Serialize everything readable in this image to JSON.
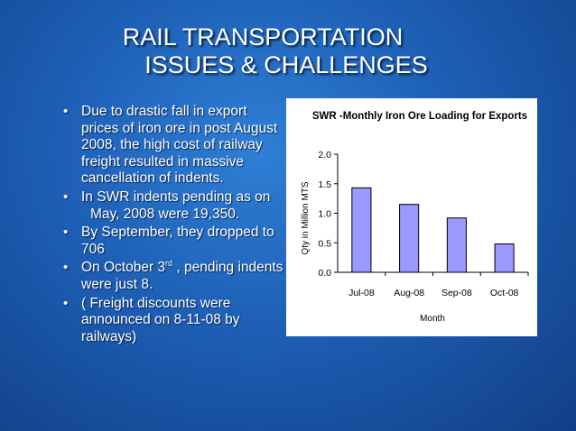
{
  "slide": {
    "title_line1": "RAIL TRANSPORTATION",
    "title_line2": "ISSUES & CHALLENGES"
  },
  "bullets": [
    {
      "text": "Due to drastic fall in export prices of iron ore in post August 2008, the high cost of railway freight resulted in massive cancellation of indents."
    },
    {
      "text": "In SWR indents pending as on",
      "text2": "May, 2008 were 19,350."
    },
    {
      "text": "By September, they dropped to 706"
    },
    {
      "text_before": "On October 3",
      "ordinal": "rd",
      "text_after": " , pending indents were just 8."
    },
    {
      "text": "( Freight discounts were announced on 8-11-08 by railways)"
    }
  ],
  "bullet_symbol": "•",
  "colors": {
    "background": "#1d5fb5",
    "bar_fill": "#9999ff",
    "text": "#ffffff"
  },
  "chart_data": {
    "type": "bar",
    "title": "SWR -Monthly Iron Ore Loading for Exports",
    "xlabel": "Month",
    "ylabel": "Qty in Million MTS",
    "categories": [
      "Jul-08",
      "Aug-08",
      "Sep-08",
      "Oct-08"
    ],
    "values": [
      1.43,
      1.15,
      0.92,
      0.48
    ],
    "ylim": [
      0,
      2.0
    ],
    "yticks": [
      "0.0",
      "0.5",
      "1.0",
      "1.5",
      "2.0"
    ],
    "grid": false,
    "legend": "none"
  }
}
